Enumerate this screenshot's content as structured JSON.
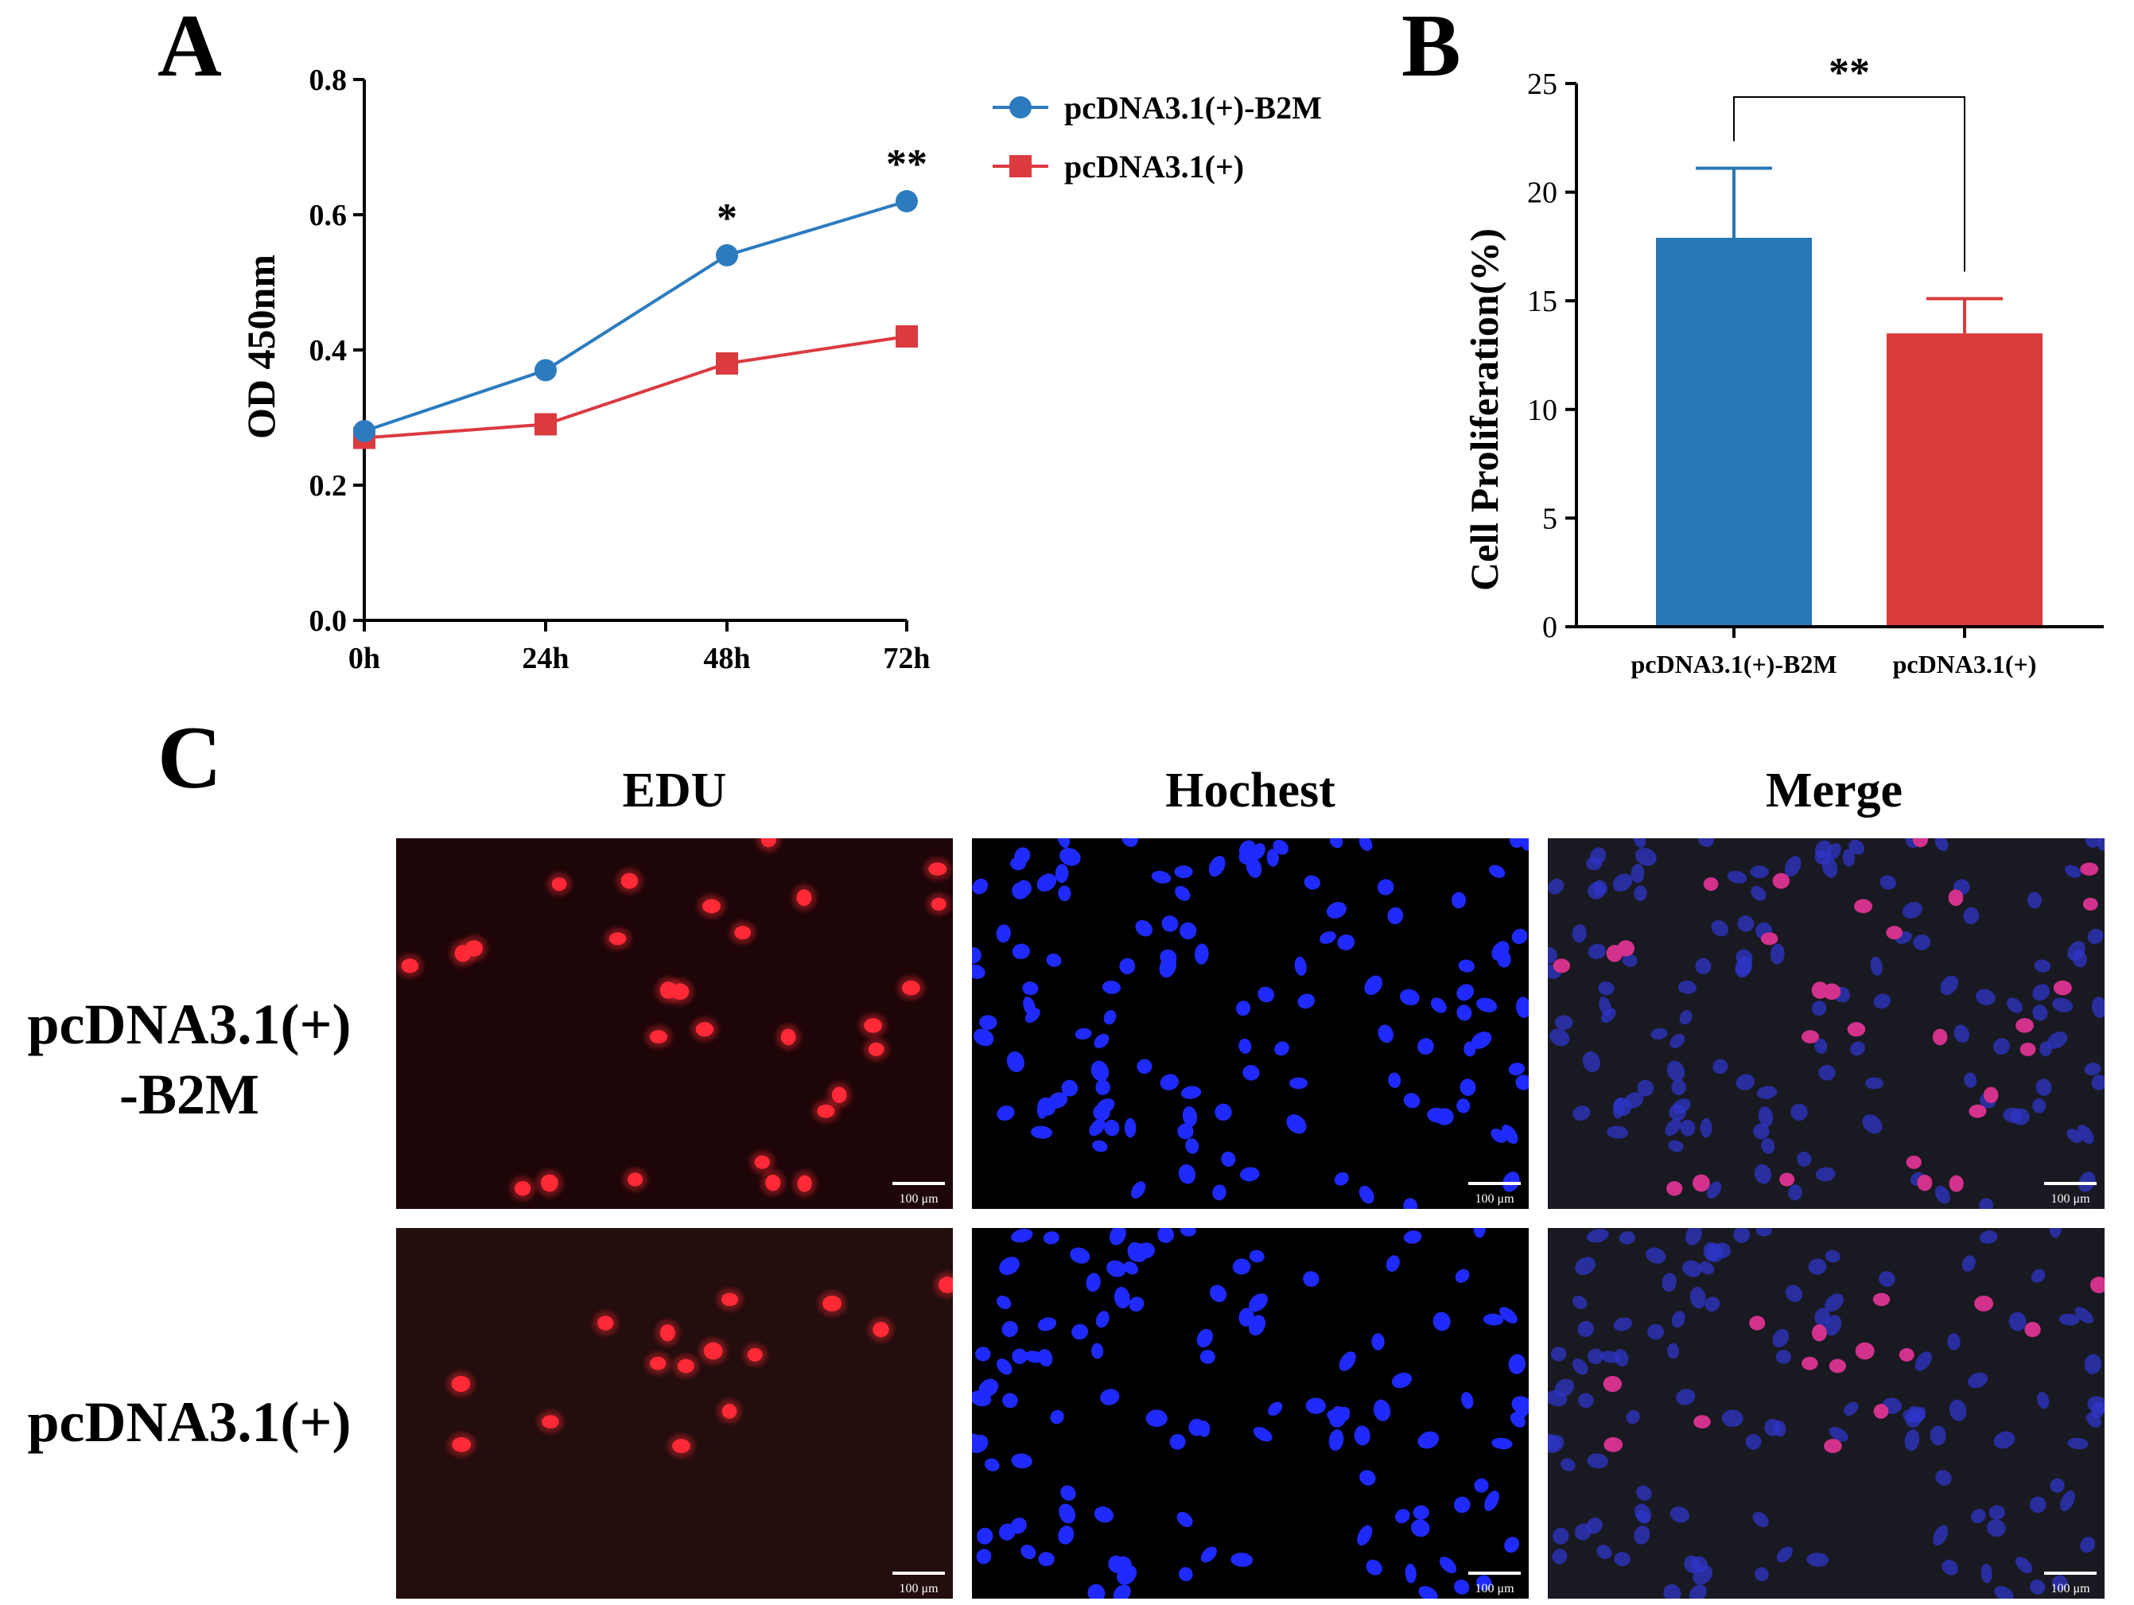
{
  "panels": {
    "a_letter": "A",
    "b_letter": "B",
    "c_letter": "C"
  },
  "colors": {
    "blue": "#2c7bbf",
    "red": "#db3a3f",
    "bar_blue": "#2877b5",
    "bar_red": "#d93a3c",
    "edu_bg": "#1e0608",
    "edu_bg2": "#230d0d",
    "hoechst_bg": "#000000",
    "merge_bg": "#191922",
    "edu_cell": "#ff2a36",
    "hoechst_cell": "#1f2aff",
    "merge_blue_cell": "#2d35c8",
    "merge_pink_cell": "#d2328c"
  },
  "chart_data": [
    {
      "type": "line",
      "panel": "A",
      "x": [
        "0h",
        "24h",
        "48h",
        "72h"
      ],
      "ylabel": "OD 450nm",
      "xlabel": "",
      "ylim": [
        0.0,
        0.8
      ],
      "yticks": [
        "0.0",
        "0.2",
        "0.4",
        "0.6",
        "0.8"
      ],
      "series": [
        {
          "name": "pcDNA3.1(+)-B2M",
          "values": [
            0.28,
            0.37,
            0.54,
            0.62
          ],
          "marker": "circle",
          "color": "#2c7bbf"
        },
        {
          "name": "pcDNA3.1(+)",
          "values": [
            0.27,
            0.29,
            0.38,
            0.42
          ],
          "marker": "square",
          "color": "#db3a3f"
        }
      ],
      "annotations": [
        {
          "x": "48h",
          "text": "*"
        },
        {
          "x": "72h",
          "text": "**"
        }
      ],
      "legend": "top-right"
    },
    {
      "type": "bar",
      "panel": "B",
      "categories": [
        "pcDNA3.1(+)-B2M",
        "pcDNA3.1(+)"
      ],
      "values": [
        17.9,
        13.5
      ],
      "errors": [
        3.2,
        1.6
      ],
      "ylabel": "Cell Proliferation(%)",
      "xlabel": "",
      "ylim": [
        0,
        25
      ],
      "yticks": [
        "0",
        "5",
        "10",
        "15",
        "20",
        "25"
      ],
      "significance": "**"
    }
  ],
  "panel_c": {
    "columns": [
      "EDU",
      "Hochest",
      "Merge"
    ],
    "rows": [
      {
        "label_line1": "pcDNA3.1(+)",
        "label_line2": "-B2M"
      },
      {
        "label_line1": "pcDNA3.1(+)",
        "label_line2": ""
      }
    ],
    "scale_bar": "100 μm"
  }
}
